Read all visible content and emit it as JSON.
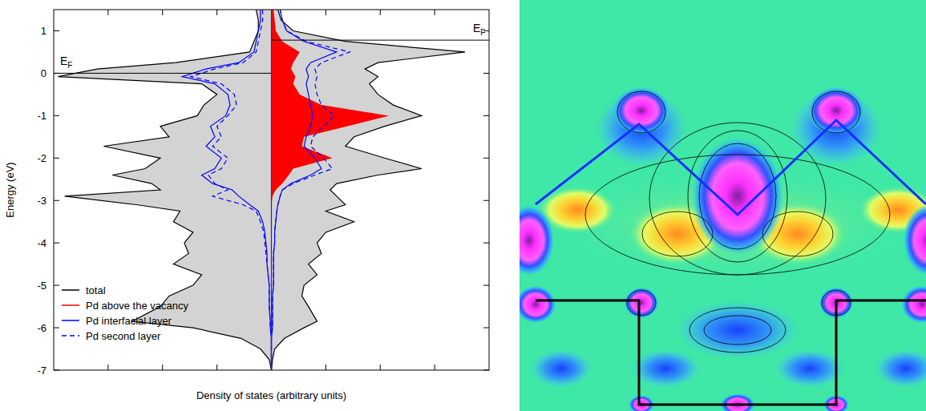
{
  "chart_data": {
    "type": "area",
    "orientation": "horizontal",
    "y_label": "Energy (eV)",
    "x_label": "Density of states (arbitrary units)",
    "xlim": [
      -10,
      10
    ],
    "xticks": [
      -7.5,
      -5,
      -2.5,
      0,
      2.5,
      5,
      7.5
    ],
    "ylim": [
      -7,
      1.5
    ],
    "yticks": [
      -7,
      -6,
      -5,
      -4,
      -3,
      -2,
      -1,
      0,
      1
    ],
    "tick_labels": "y",
    "legend": "lower left",
    "fermi_levels": [
      {
        "value": 0,
        "text": "E",
        "sub": "F",
        "side": "left"
      },
      {
        "value": 0.78,
        "text": "E",
        "sub": "F",
        "side": "right"
      }
    ],
    "y": [
      1.5,
      1.25,
      1,
      0.75,
      0.5,
      0.25,
      0.1,
      -0.08,
      -0.25,
      -0.5,
      -0.75,
      -1,
      -1.25,
      -1.5,
      -1.72,
      -2,
      -2.25,
      -2.4,
      -2.6,
      -2.75,
      -2.9,
      -3.1,
      -3.25,
      -3.5,
      -3.75,
      -4,
      -4.25,
      -4.5,
      -4.75,
      -5,
      -5.25,
      -5.5,
      -5.85,
      -6,
      -6.25,
      -6.5,
      -6.75,
      -7
    ],
    "series": [
      {
        "name": "total",
        "type": "area",
        "color": "#000000",
        "line_style": "solid",
        "values_left": [
          -0.7,
          -0.6,
          -0.6,
          -0.8,
          -1.0,
          -4.4,
          -8.0,
          -9.8,
          -3.2,
          -2.5,
          -3.1,
          -3.4,
          -5.1,
          -4.7,
          -7.7,
          -5.1,
          -5.8,
          -7.3,
          -5.5,
          -5.1,
          -9.5,
          -6.2,
          -4.2,
          -4.5,
          -3.6,
          -4.0,
          -3.8,
          -4.5,
          -3.2,
          -3.6,
          -4.7,
          -5.1,
          -6.4,
          -3.6,
          -1.4,
          -0.5,
          -0.1,
          0
        ],
        "values_right": [
          0.3,
          0.45,
          1.0,
          3.4,
          8.9,
          4.9,
          4.3,
          4.9,
          4.5,
          4.9,
          5.6,
          6.9,
          5.2,
          3.8,
          3.4,
          5.2,
          6.9,
          4.9,
          3.0,
          2.7,
          3.0,
          3.4,
          2.5,
          3.8,
          2.5,
          2.1,
          2.3,
          1.7,
          2.1,
          1.5,
          1.4,
          1.7,
          2.1,
          1.5,
          0.6,
          0.15,
          0.05,
          0
        ]
      },
      {
        "name": "Pd above the vacancy",
        "type": "area",
        "color": "#ff0000",
        "line_style": "solid",
        "values_right": [
          0.1,
          0.15,
          0.2,
          0.5,
          1.3,
          1.0,
          0.9,
          1.1,
          1.0,
          1.3,
          2.3,
          5.4,
          3.5,
          1.5,
          1.4,
          2.8,
          1.0,
          0.8,
          0.5,
          0.2,
          0.05,
          0,
          0,
          0,
          0,
          0,
          0,
          0,
          0,
          0,
          0,
          0,
          0,
          0,
          0,
          0,
          0,
          0
        ]
      },
      {
        "name": "Pd interfacial layer",
        "type": "line",
        "color": "#0000ff",
        "line_style": "solid",
        "values_left": [
          -0.5,
          -0.5,
          -0.6,
          -0.7,
          -0.8,
          -1.5,
          -3.0,
          -4.1,
          -2.6,
          -2.0,
          -1.9,
          -2.1,
          -2.8,
          -2.6,
          -3.0,
          -2.3,
          -2.6,
          -3.2,
          -2.7,
          -1.8,
          -1.5,
          -1.0,
          -0.6,
          -0.4,
          -0.3,
          -0.25,
          -0.2,
          -0.2,
          -0.15,
          -0.1,
          -0.1,
          -0.1,
          -0.05,
          -0.05,
          0,
          0,
          0,
          0
        ],
        "values_right": [
          0.4,
          0.5,
          0.7,
          1.5,
          3.0,
          1.8,
          1.6,
          1.7,
          1.6,
          1.7,
          1.8,
          1.9,
          1.8,
          1.6,
          1.5,
          2.0,
          2.3,
          1.8,
          0.9,
          0.5,
          0.4,
          0.3,
          0.25,
          0.2,
          0.15,
          0.15,
          0.1,
          0.1,
          0.1,
          0.1,
          0.05,
          0.05,
          0.05,
          0.05,
          0,
          0,
          0,
          0
        ]
      },
      {
        "name": "Pd second layer",
        "type": "line",
        "color": "#0000ff",
        "line_style": "dashed",
        "values_left": [
          -0.4,
          -0.4,
          -0.5,
          -0.6,
          -0.7,
          -1.3,
          -2.6,
          -3.7,
          -2.3,
          -1.7,
          -1.6,
          -2.0,
          -2.5,
          -2.3,
          -2.7,
          -2.0,
          -2.3,
          -2.9,
          -2.6,
          -2.0,
          -2.7,
          -1.3,
          -0.7,
          -0.5,
          -0.35,
          -0.3,
          -0.25,
          -0.2,
          -0.15,
          -0.1,
          -0.1,
          -0.1,
          -0.05,
          -0.05,
          0,
          0,
          0,
          0
        ],
        "values_right": [
          0.4,
          0.5,
          0.7,
          1.6,
          3.6,
          2.3,
          2.0,
          2.1,
          2.0,
          2.1,
          2.3,
          2.9,
          2.4,
          1.9,
          1.8,
          2.4,
          2.8,
          2.0,
          1.0,
          0.5,
          0.4,
          0.3,
          0.25,
          0.2,
          0.15,
          0.15,
          0.1,
          0.1,
          0.1,
          0.1,
          0.05,
          0.05,
          0.05,
          0.05,
          0,
          0,
          0,
          0
        ]
      }
    ]
  }
}
